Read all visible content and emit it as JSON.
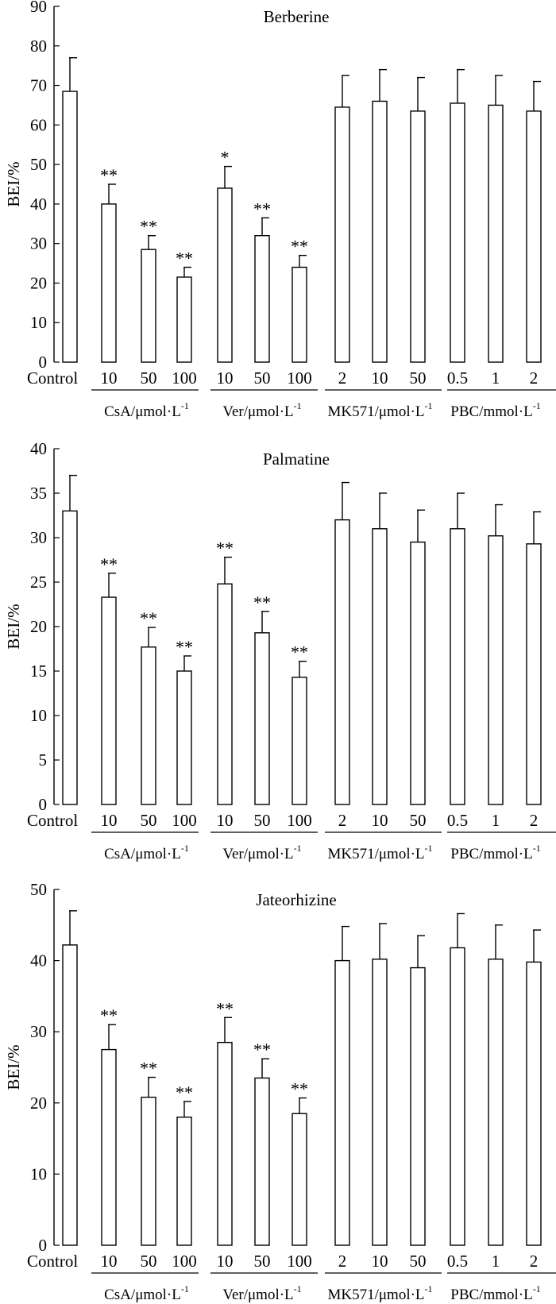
{
  "chart_data": [
    {
      "type": "bar",
      "title": "Berberine",
      "ylabel": "BEI/%",
      "ylim": [
        0,
        90
      ],
      "yticks": [
        0,
        10,
        20,
        30,
        40,
        50,
        60,
        70,
        80,
        90
      ],
      "categories": [
        "Control",
        "10",
        "50",
        "100",
        "10",
        "50",
        "100",
        "2",
        "10",
        "50",
        "0.5",
        "1",
        "2"
      ],
      "values": [
        68.5,
        40,
        28.5,
        21.5,
        44,
        32,
        24,
        64.5,
        66,
        63.5,
        65.5,
        65,
        63.5
      ],
      "errors": [
        8.5,
        5,
        3.5,
        2.5,
        5.5,
        4.5,
        3,
        8,
        8,
        8.5,
        8.5,
        7.5,
        7.5
      ],
      "significance": [
        "",
        "**",
        "**",
        "**",
        "*",
        "**",
        "**",
        "",
        "",
        "",
        "",
        "",
        ""
      ],
      "groups": [
        {
          "label": "CsA/μmol·L",
          "sup": "-1",
          "start": 1,
          "end": 3
        },
        {
          "label": "Ver/μmol·L",
          "sup": "-1",
          "start": 4,
          "end": 6
        },
        {
          "label": "MK571/μmol·L",
          "sup": "-1",
          "start": 7,
          "end": 9
        },
        {
          "label": "PBC/mmol·L",
          "sup": "-1",
          "start": 10,
          "end": 12
        }
      ]
    },
    {
      "type": "bar",
      "title": "Palmatine",
      "ylabel": "BEI/%",
      "ylim": [
        0,
        40
      ],
      "yticks": [
        0,
        5,
        10,
        15,
        20,
        25,
        30,
        35,
        40
      ],
      "categories": [
        "Control",
        "10",
        "50",
        "100",
        "10",
        "50",
        "100",
        "2",
        "10",
        "50",
        "0.5",
        "1",
        "2"
      ],
      "values": [
        33,
        23.3,
        17.7,
        15,
        24.8,
        19.3,
        14.3,
        32,
        31,
        29.5,
        31,
        30.2,
        29.3
      ],
      "errors": [
        4,
        2.7,
        2.2,
        1.7,
        3,
        2.4,
        1.8,
        4.2,
        4,
        3.6,
        4,
        3.5,
        3.6
      ],
      "significance": [
        "",
        "**",
        "**",
        "**",
        "**",
        "**",
        "**",
        "",
        "",
        "",
        "",
        "",
        ""
      ],
      "groups": [
        {
          "label": "CsA/μmol·L",
          "sup": "-1",
          "start": 1,
          "end": 3
        },
        {
          "label": "Ver/μmol·L",
          "sup": "-1",
          "start": 4,
          "end": 6
        },
        {
          "label": "MK571/μmol·L",
          "sup": "-1",
          "start": 7,
          "end": 9
        },
        {
          "label": "PBC/mmol·L",
          "sup": "-1",
          "start": 10,
          "end": 12
        }
      ]
    },
    {
      "type": "bar",
      "title": "Jateorhizine",
      "ylabel": "BEI/%",
      "ylim": [
        0,
        50
      ],
      "yticks": [
        0,
        10,
        20,
        30,
        40,
        50
      ],
      "categories": [
        "Control",
        "10",
        "50",
        "100",
        "10",
        "50",
        "100",
        "2",
        "10",
        "50",
        "0.5",
        "1",
        "2"
      ],
      "values": [
        42.2,
        27.5,
        20.8,
        18,
        28.5,
        23.5,
        18.5,
        40,
        40.2,
        39,
        41.8,
        40.2,
        39.8
      ],
      "errors": [
        4.8,
        3.5,
        2.8,
        2.2,
        3.5,
        2.7,
        2.2,
        4.8,
        5,
        4.5,
        4.8,
        4.8,
        4.5
      ],
      "significance": [
        "",
        "**",
        "**",
        "**",
        "**",
        "**",
        "**",
        "",
        "",
        "",
        "",
        "",
        ""
      ],
      "groups": [
        {
          "label": "CsA/μmol·L",
          "sup": "-1",
          "start": 1,
          "end": 3
        },
        {
          "label": "Ver/μmol·L",
          "sup": "-1",
          "start": 4,
          "end": 6
        },
        {
          "label": "MK571/μmol·L",
          "sup": "-1",
          "start": 7,
          "end": 9
        },
        {
          "label": "PBC/mmol·L",
          "sup": "-1",
          "start": 10,
          "end": 12
        }
      ]
    }
  ]
}
